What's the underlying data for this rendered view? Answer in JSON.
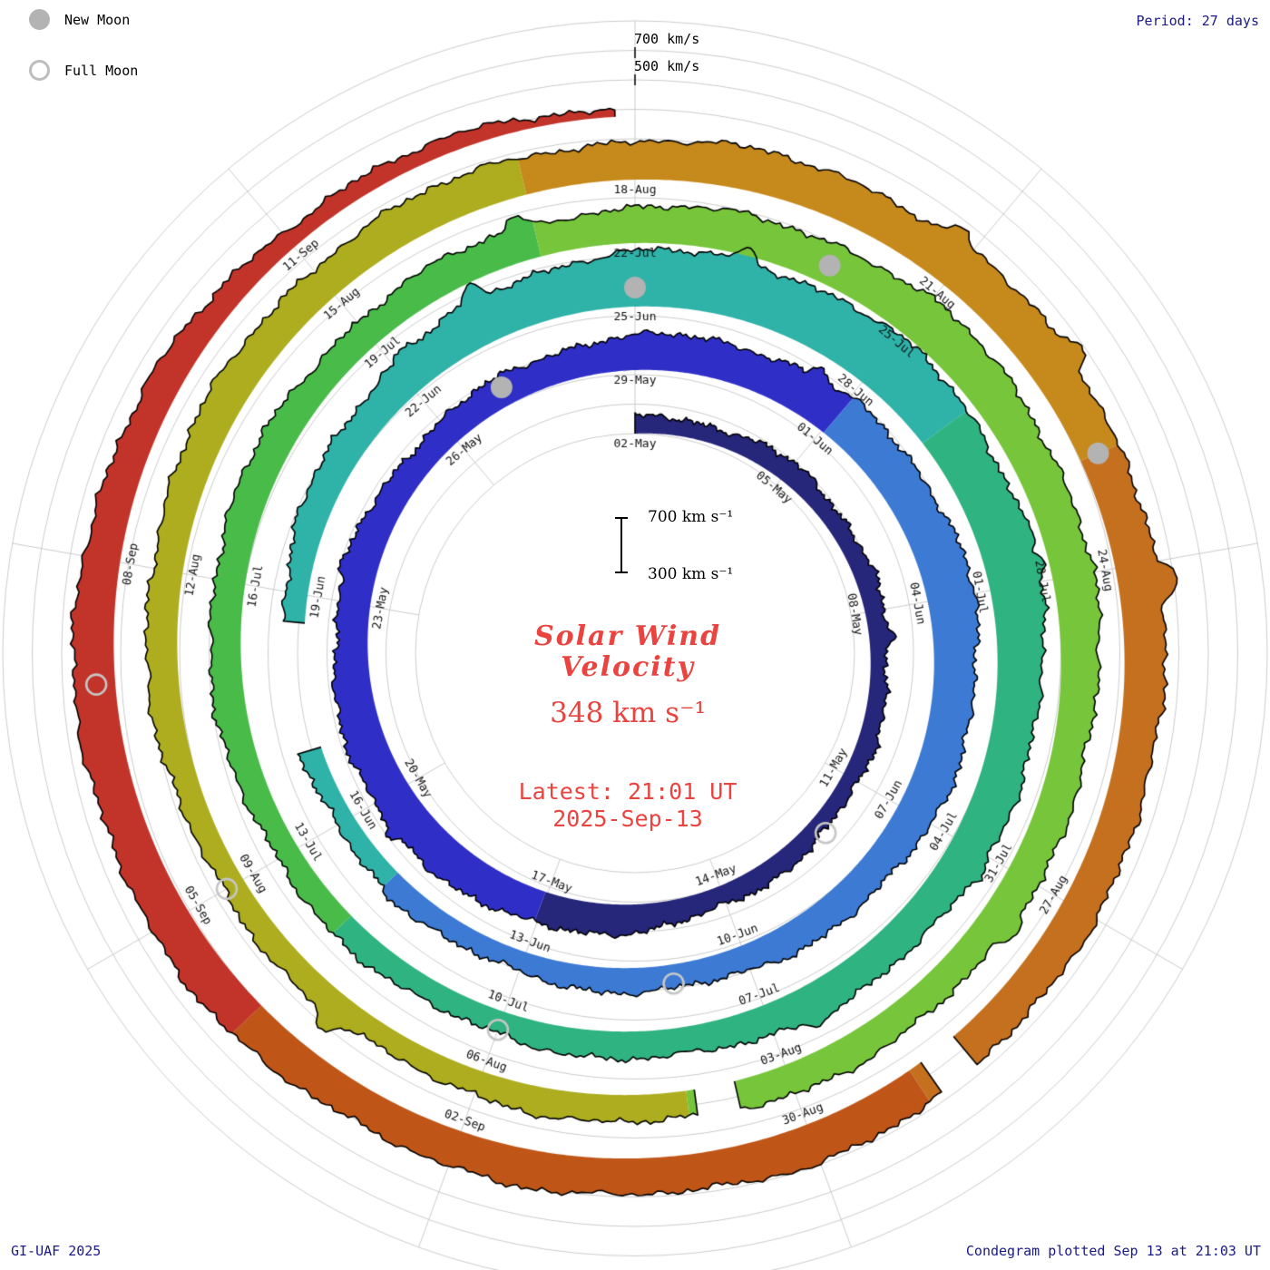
{
  "legend": {
    "new_moon_label": "New Moon",
    "full_moon_label": "Full Moon"
  },
  "top_right": {
    "period_label": "Period: 27 days"
  },
  "ring_scale": {
    "outer_label": "700 km/s",
    "inner_label": "500 km/s"
  },
  "center": {
    "scale_high": "700 km s⁻¹",
    "scale_low": "300 km s⁻¹",
    "title_line1": "Solar Wind",
    "title_line2": "Velocity",
    "current_value": "348 km s⁻¹",
    "latest_time": "Latest: 21:01 UT",
    "latest_date": "2025-Sep-13"
  },
  "footer": {
    "credit": "GI-UAF 2025",
    "plotted_note": "Condegram plotted Sep 13 at 21:03 UT"
  },
  "colors": {
    "accent_red": "#ea4440",
    "corner_navy": "#1a1a86",
    "grid_gray": "#cbcbcb",
    "moon_gray": "#b3b3b3",
    "outline_black": "#000000"
  },
  "chart_data": {
    "type": "area",
    "subtype": "condegram-spiral",
    "title": "Solar Wind Velocity",
    "period_days": 27,
    "angular_direction": "clockwise",
    "labels_every_days": 3,
    "start_date": "2025-05-02",
    "end_day": 134.875,
    "latest": {
      "value_kms": 348,
      "time_ut": "21:01",
      "date": "2025-Sep-13"
    },
    "radial": {
      "baseline_kms": 300,
      "ring_gridlines_kms": [
        500,
        700
      ]
    },
    "date_labels": [
      {
        "day": 0,
        "label": "02-May"
      },
      {
        "day": 3,
        "label": "05-May"
      },
      {
        "day": 6,
        "label": "08-May"
      },
      {
        "day": 9,
        "label": "11-May"
      },
      {
        "day": 12,
        "label": "14-May"
      },
      {
        "day": 15,
        "label": "17-May"
      },
      {
        "day": 18,
        "label": "20-May"
      },
      {
        "day": 21,
        "label": "23-May"
      },
      {
        "day": 24,
        "label": "26-May"
      },
      {
        "day": 27,
        "label": "29-May"
      },
      {
        "day": 30,
        "label": "01-Jun"
      },
      {
        "day": 33,
        "label": "04-Jun"
      },
      {
        "day": 36,
        "label": "07-Jun"
      },
      {
        "day": 39,
        "label": "10-Jun"
      },
      {
        "day": 42,
        "label": "13-Jun"
      },
      {
        "day": 45,
        "label": "16-Jun"
      },
      {
        "day": 48,
        "label": "19-Jun"
      },
      {
        "day": 51,
        "label": "22-Jun"
      },
      {
        "day": 54,
        "label": "25-Jun"
      },
      {
        "day": 57,
        "label": "28-Jun"
      },
      {
        "day": 60,
        "label": "01-Jul"
      },
      {
        "day": 63,
        "label": "04-Jul"
      },
      {
        "day": 66,
        "label": "07-Jul"
      },
      {
        "day": 69,
        "label": "10-Jul"
      },
      {
        "day": 72,
        "label": "13-Jul"
      },
      {
        "day": 75,
        "label": "16-Jul"
      },
      {
        "day": 78,
        "label": "19-Jul"
      },
      {
        "day": 81,
        "label": "22-Jul"
      },
      {
        "day": 84,
        "label": "25-Jul"
      },
      {
        "day": 87,
        "label": "28-Jul"
      },
      {
        "day": 90,
        "label": "31-Jul"
      },
      {
        "day": 93,
        "label": "03-Aug"
      },
      {
        "day": 96,
        "label": "06-Aug"
      },
      {
        "day": 99,
        "label": "09-Aug"
      },
      {
        "day": 102,
        "label": "12-Aug"
      },
      {
        "day": 105,
        "label": "15-Aug"
      },
      {
        "day": 108,
        "label": "18-Aug"
      },
      {
        "day": 111,
        "label": "21-Aug"
      },
      {
        "day": 114,
        "label": "24-Aug"
      },
      {
        "day": 117,
        "label": "27-Aug"
      },
      {
        "day": 120,
        "label": "30-Aug"
      },
      {
        "day": 123,
        "label": "02-Sep"
      },
      {
        "day": 126,
        "label": "05-Sep"
      },
      {
        "day": 129,
        "label": "08-Sep"
      },
      {
        "day": 132,
        "label": "11-Sep"
      }
    ],
    "velocity_kms": {
      "step_days": 3,
      "start_day": 0,
      "values": [
        400,
        430,
        420,
        410,
        430,
        520,
        560,
        510,
        470,
        520,
        580,
        600,
        540,
        470,
        440,
        430,
        450,
        540,
        660,
        680,
        620,
        550,
        500,
        450,
        460,
        510,
        490,
        530,
        590,
        560,
        510,
        490,
        460,
        450,
        510,
        530,
        550,
        590,
        570,
        530,
        550,
        530,
        570,
        550,
        430,
        348
      ]
    },
    "color_stops": [
      {
        "day": 0,
        "color": "#26267a"
      },
      {
        "day": 15,
        "color": "#2f2fc8"
      },
      {
        "day": 30,
        "color": "#3c7ad4"
      },
      {
        "day": 44,
        "color": "#2fb2a8"
      },
      {
        "day": 58,
        "color": "#2fb380"
      },
      {
        "day": 71,
        "color": "#49bb49"
      },
      {
        "day": 80,
        "color": "#76c53a"
      },
      {
        "day": 94,
        "color": "#adad1f"
      },
      {
        "day": 107,
        "color": "#c6891b"
      },
      {
        "day": 113,
        "color": "#c4701e"
      },
      {
        "day": 119,
        "color": "#bf5618"
      },
      {
        "day": 125,
        "color": "#c23429"
      }
    ],
    "data_gaps": [
      {
        "start": 46.0,
        "end": 47.6
      },
      {
        "start": 93.55,
        "end": 93.9
      },
      {
        "start": 118.55,
        "end": 118.85
      }
    ],
    "moons": {
      "new_moon_days": [
        25,
        54,
        83,
        113
      ],
      "new_moon_dates": [
        "2025-05-27",
        "2025-06-25",
        "2025-07-24",
        "2025-08-23"
      ],
      "full_moon_days": [
        10,
        40,
        69,
        99,
        128
      ],
      "full_moon_dates": [
        "2025-05-12",
        "2025-06-11",
        "2025-07-10",
        "2025-08-09",
        "2025-09-07"
      ]
    }
  }
}
